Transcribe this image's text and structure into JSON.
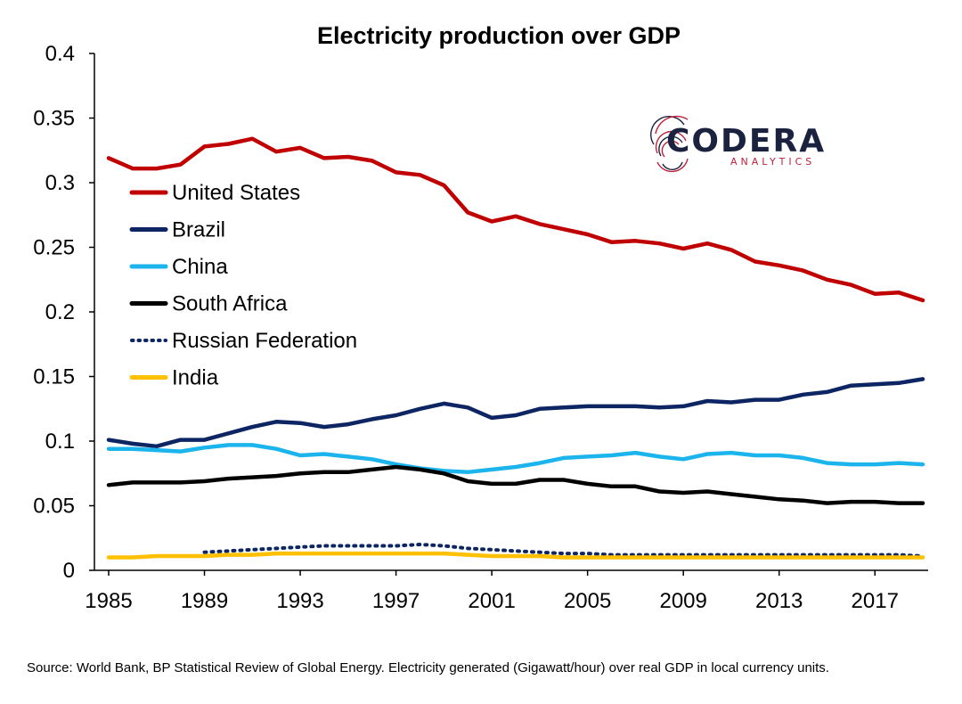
{
  "chart_data": {
    "type": "line",
    "title": "Electricity production over GDP",
    "xlabel": "",
    "ylabel": "",
    "xlim": [
      1985,
      2019
    ],
    "ylim": [
      0,
      0.4
    ],
    "x_ticks": [
      1985,
      1989,
      1993,
      1997,
      2001,
      2005,
      2009,
      2013,
      2017
    ],
    "y_ticks": [
      "0",
      "0.05",
      "0.1",
      "0.15",
      "0.2",
      "0.25",
      "0.3",
      "0.35",
      "0.4"
    ],
    "grid": false,
    "legend_position": "left",
    "series": [
      {
        "name": "United States",
        "color": "#C00000",
        "dash": "solid",
        "x": [
          1985,
          1986,
          1987,
          1988,
          1989,
          1990,
          1991,
          1992,
          1993,
          1994,
          1995,
          1996,
          1997,
          1998,
          1999,
          2000,
          2001,
          2002,
          2003,
          2004,
          2005,
          2006,
          2007,
          2008,
          2009,
          2010,
          2011,
          2012,
          2013,
          2014,
          2015,
          2016,
          2017,
          2018,
          2019
        ],
        "y": [
          0.319,
          0.311,
          0.311,
          0.314,
          0.328,
          0.33,
          0.334,
          0.324,
          0.327,
          0.319,
          0.32,
          0.317,
          0.308,
          0.306,
          0.298,
          0.277,
          0.27,
          0.274,
          0.268,
          0.264,
          0.26,
          0.254,
          0.255,
          0.253,
          0.249,
          0.253,
          0.248,
          0.239,
          0.236,
          0.232,
          0.225,
          0.221,
          0.214,
          0.215,
          0.209
        ]
      },
      {
        "name": "Brazil",
        "color": "#0D2663",
        "dash": "solid",
        "x": [
          1985,
          1986,
          1987,
          1988,
          1989,
          1990,
          1991,
          1992,
          1993,
          1994,
          1995,
          1996,
          1997,
          1998,
          1999,
          2000,
          2001,
          2002,
          2003,
          2004,
          2005,
          2006,
          2007,
          2008,
          2009,
          2010,
          2011,
          2012,
          2013,
          2014,
          2015,
          2016,
          2017,
          2018,
          2019
        ],
        "y": [
          0.101,
          0.098,
          0.096,
          0.101,
          0.101,
          0.106,
          0.111,
          0.115,
          0.114,
          0.111,
          0.113,
          0.117,
          0.12,
          0.125,
          0.129,
          0.126,
          0.118,
          0.12,
          0.125,
          0.126,
          0.127,
          0.127,
          0.127,
          0.126,
          0.127,
          0.131,
          0.13,
          0.132,
          0.132,
          0.136,
          0.138,
          0.143,
          0.144,
          0.145,
          0.148
        ]
      },
      {
        "name": "China",
        "color": "#1CB4EC",
        "dash": "solid",
        "x": [
          1985,
          1986,
          1987,
          1988,
          1989,
          1990,
          1991,
          1992,
          1993,
          1994,
          1995,
          1996,
          1997,
          1998,
          1999,
          2000,
          2001,
          2002,
          2003,
          2004,
          2005,
          2006,
          2007,
          2008,
          2009,
          2010,
          2011,
          2012,
          2013,
          2014,
          2015,
          2016,
          2017,
          2018,
          2019
        ],
        "y": [
          0.094,
          0.094,
          0.093,
          0.092,
          0.095,
          0.097,
          0.097,
          0.094,
          0.089,
          0.09,
          0.088,
          0.086,
          0.082,
          0.079,
          0.077,
          0.076,
          0.078,
          0.08,
          0.083,
          0.087,
          0.088,
          0.089,
          0.091,
          0.088,
          0.086,
          0.09,
          0.091,
          0.089,
          0.089,
          0.087,
          0.083,
          0.082,
          0.082,
          0.083,
          0.082
        ]
      },
      {
        "name": "South Africa",
        "color": "#000000",
        "dash": "solid",
        "x": [
          1985,
          1986,
          1987,
          1988,
          1989,
          1990,
          1991,
          1992,
          1993,
          1994,
          1995,
          1996,
          1997,
          1998,
          1999,
          2000,
          2001,
          2002,
          2003,
          2004,
          2005,
          2006,
          2007,
          2008,
          2009,
          2010,
          2011,
          2012,
          2013,
          2014,
          2015,
          2016,
          2017,
          2018,
          2019
        ],
        "y": [
          0.066,
          0.068,
          0.068,
          0.068,
          0.069,
          0.071,
          0.072,
          0.073,
          0.075,
          0.076,
          0.076,
          0.078,
          0.08,
          0.078,
          0.075,
          0.069,
          0.067,
          0.067,
          0.07,
          0.07,
          0.067,
          0.065,
          0.065,
          0.061,
          0.06,
          0.061,
          0.059,
          0.057,
          0.055,
          0.054,
          0.052,
          0.053,
          0.053,
          0.052,
          0.052
        ]
      },
      {
        "name": "Russian Federation",
        "color": "#0D2663",
        "dash": "dotted",
        "x": [
          1989,
          1990,
          1991,
          1992,
          1993,
          1994,
          1995,
          1996,
          1997,
          1998,
          1999,
          2000,
          2001,
          2002,
          2003,
          2004,
          2005,
          2006,
          2007,
          2008,
          2009,
          2010,
          2011,
          2012,
          2013,
          2014,
          2015,
          2016,
          2017,
          2018,
          2019
        ],
        "y": [
          0.014,
          0.015,
          0.016,
          0.017,
          0.018,
          0.019,
          0.019,
          0.019,
          0.019,
          0.02,
          0.019,
          0.017,
          0.016,
          0.015,
          0.014,
          0.013,
          0.013,
          0.012,
          0.012,
          0.012,
          0.012,
          0.012,
          0.012,
          0.012,
          0.012,
          0.012,
          0.012,
          0.012,
          0.012,
          0.012,
          0.011
        ]
      },
      {
        "name": "India",
        "color": "#FFC000",
        "dash": "solid",
        "x": [
          1985,
          1986,
          1987,
          1988,
          1989,
          1990,
          1991,
          1992,
          1993,
          1994,
          1995,
          1996,
          1997,
          1998,
          1999,
          2000,
          2001,
          2002,
          2003,
          2004,
          2005,
          2006,
          2007,
          2008,
          2009,
          2010,
          2011,
          2012,
          2013,
          2014,
          2015,
          2016,
          2017,
          2018,
          2019
        ],
        "y": [
          0.01,
          0.01,
          0.011,
          0.011,
          0.011,
          0.012,
          0.012,
          0.013,
          0.013,
          0.013,
          0.013,
          0.013,
          0.013,
          0.013,
          0.013,
          0.012,
          0.011,
          0.011,
          0.011,
          0.01,
          0.01,
          0.01,
          0.01,
          0.01,
          0.01,
          0.01,
          0.01,
          0.01,
          0.01,
          0.01,
          0.01,
          0.01,
          0.01,
          0.01,
          0.01
        ]
      }
    ]
  },
  "logo": {
    "name": "CODERA",
    "tagline": "ANALYTICS",
    "color_dark": "#1B2240",
    "color_accent": "#C0203A"
  },
  "source_note": "Source: World Bank, BP Statistical Review of Global Energy. Electricity generated (Gigawatt/hour) over real GDP in local currency units."
}
